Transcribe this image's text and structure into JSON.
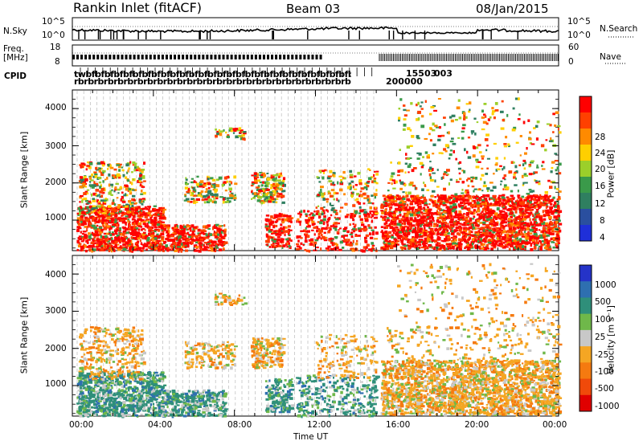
{
  "header": {
    "station": "Rankin Inlet (fitACF)",
    "beam": "Beam 03",
    "date": "08/Jan/2015"
  },
  "noise_panel": {
    "left_label": "N.Sky",
    "right_label": "N.Search",
    "left_ticks": [
      "10^5",
      "10^0"
    ],
    "right_ticks": [
      "10^5",
      "10^0"
    ]
  },
  "freq_panel": {
    "left_label_line1": "Freq.",
    "left_label_line2": "[MHz]",
    "left_ticks": [
      "18",
      "8"
    ],
    "right_ticks": [
      "60",
      "0"
    ],
    "right_label": "Nave"
  },
  "cpid": {
    "label": "CPID",
    "row1": "twbfbfbfbfbfbfbfbfbfbfbfbfbfbfbfbfbfbfbfbfbfbfbfbfbfbfbfbfbf",
    "row2": "rbrbrbrbrbrbrbrbrbrbrbrbrbrbrbrbrbrbrbrbrbrbrbrbrbrbrbrbrbrbrb",
    "tail1": "003",
    "tail2": "15503",
    "tail3": "200000"
  },
  "chart_data": [
    {
      "type": "heatmap",
      "name": "power",
      "ylabel": "Slant Range [km]",
      "y_ticks": [
        1000,
        2000,
        3000,
        4000
      ],
      "ylim": [
        180,
        4500
      ],
      "x_ticks": [
        "00:00",
        "04:00",
        "08:00",
        "12:00",
        "16:00",
        "20:00",
        "00:00"
      ],
      "colorbar": {
        "label": "Power [dB]",
        "ticks": [
          "28",
          "24",
          "20",
          "16",
          "12",
          "8",
          "4"
        ],
        "colors": [
          "#ff0000",
          "#ff4000",
          "#ff8a00",
          "#ffcf00",
          "#9ccf2a",
          "#3a9a4a",
          "#2f7f60",
          "#2a4f9f",
          "#1f2fd8"
        ]
      }
    },
    {
      "type": "heatmap",
      "name": "velocity",
      "ylabel": "Slant Range [km]",
      "y_ticks": [
        1000,
        2000,
        3000,
        4000
      ],
      "ylim": [
        180,
        4500
      ],
      "x_ticks": [
        "00:00",
        "04:00",
        "08:00",
        "12:00",
        "16:00",
        "20:00",
        "00:00"
      ],
      "xlabel": "Time UT",
      "colorbar": {
        "label": "Velocity [m s⁻¹]",
        "ticks": [
          "1000",
          "500",
          "100",
          "25",
          "-25",
          "-100",
          "-500",
          "-1000"
        ],
        "colors": [
          "#2533c8",
          "#2e6fb0",
          "#2f8f7a",
          "#6fb84a",
          "#c8c8c8",
          "#f5a623",
          "#f57a10",
          "#f04a0a",
          "#e00000"
        ]
      }
    }
  ]
}
